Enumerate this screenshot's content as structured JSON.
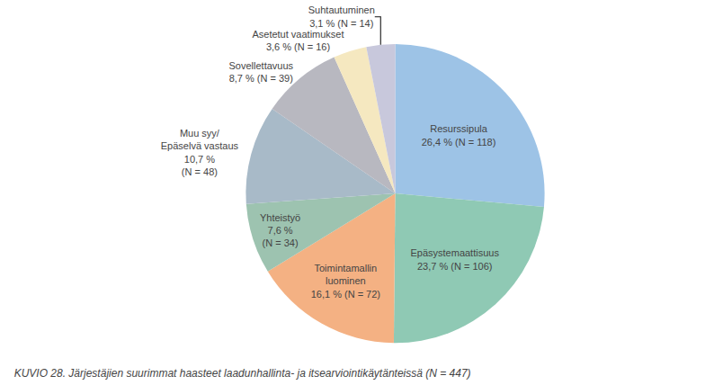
{
  "chart_data": {
    "type": "pie",
    "title": "KUVIO 28. Järjestäjien suurimmat haasteet laadunhallinta- ja itsearviointikäytänteissä (N = 447)",
    "categories": [
      "Resurssipula\n26,4 % (N = 118)",
      "Epäsystemaattisuus\n23,7 % (N = 106)",
      "Toimintamallin\nluominen\n16,1 % (N = 72)",
      "Yhteistyö\n7,6 %\n(N = 34)",
      "Muu syy/\nEpäselvä vastaus\n10,7 %\n(N = 48)",
      "Sovellettavuus\n8,7 % (N = 39)",
      "Asetetut vaatimukset\n3,6 % (N = 16)",
      "Suhtautuminen\n3,1 % (N = 14)"
    ],
    "values": [
      26.4,
      23.7,
      16.1,
      7.6,
      10.7,
      8.7,
      3.6,
      3.1
    ],
    "colors": [
      "#9DC3E6",
      "#8FC9B4",
      "#F4B183",
      "#9DC3B0",
      "#A8BAC8",
      "#B8B8C0",
      "#F5E8C0",
      "#C8C8DC"
    ]
  }
}
